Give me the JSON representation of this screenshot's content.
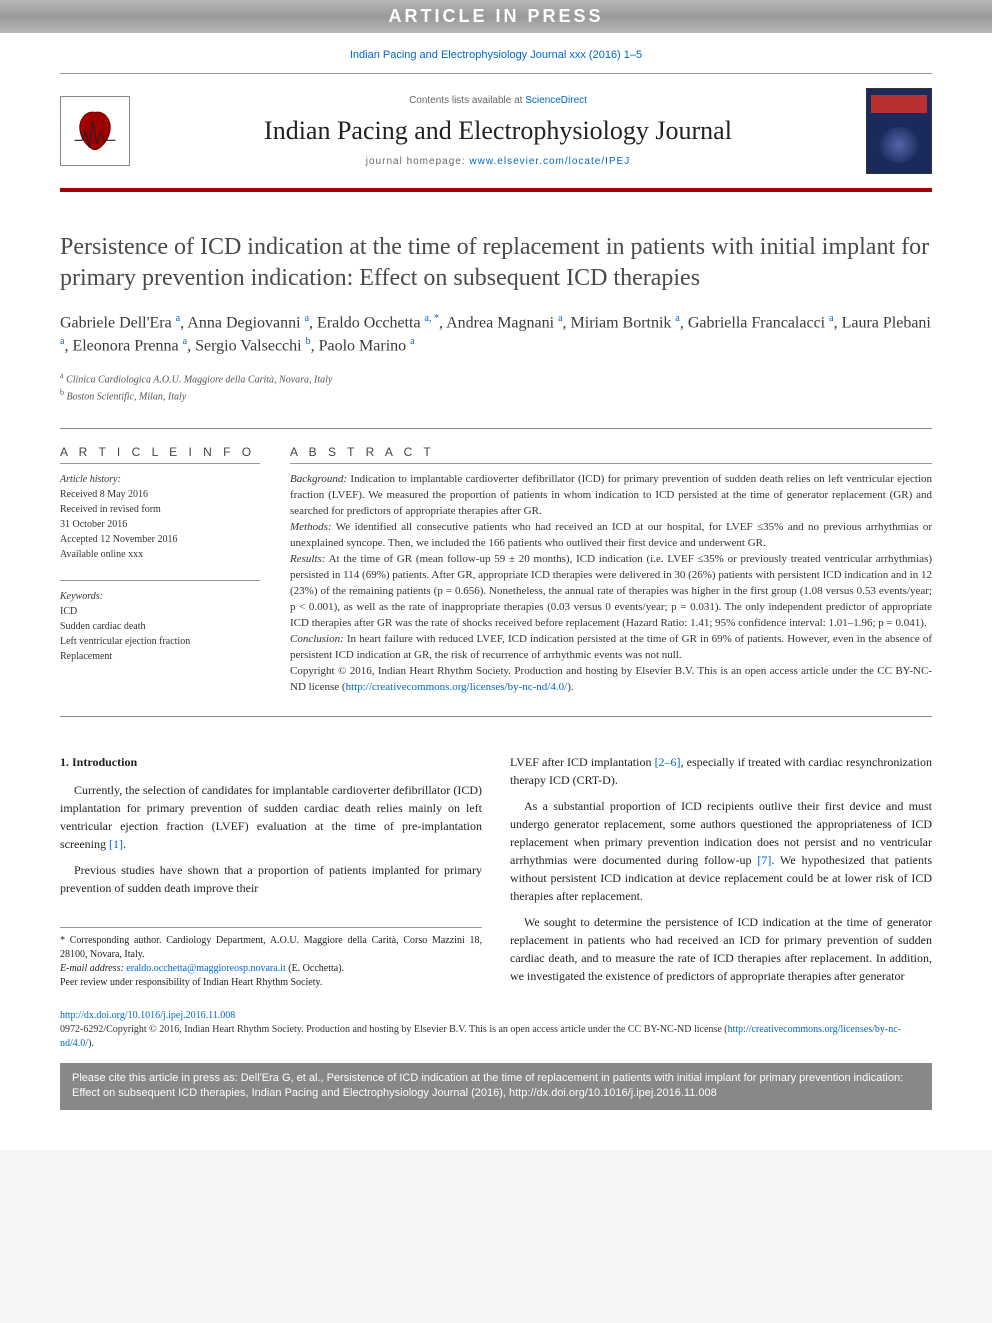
{
  "banner": {
    "text": "ARTICLE IN PRESS"
  },
  "journal_ref": "Indian Pacing and Electrophysiology Journal xxx (2016) 1–5",
  "header": {
    "contents_prefix": "Contents lists available at ",
    "contents_link": "ScienceDirect",
    "journal_title": "Indian Pacing and Electrophysiology Journal",
    "homepage_prefix": "journal homepage: ",
    "homepage_url": "www.elsevier.com/locate/IPEJ"
  },
  "article": {
    "title": "Persistence of ICD indication at the time of replacement in patients with initial implant for primary prevention indication: Effect on subsequent ICD therapies",
    "authors_html": "Gabriele Dell'Era <sup>a</sup>, Anna Degiovanni <sup>a</sup>, Eraldo Occhetta <sup>a, *</sup>, Andrea Magnani <sup>a</sup>, Miriam Bortnik <sup>a</sup>, Gabriella Francalacci <sup>a</sup>, Laura Plebani <sup>a</sup>, Eleonora Prenna <sup>a</sup>, Sergio Valsecchi <sup>b</sup>, Paolo Marino <sup>a</sup>",
    "affiliations": [
      {
        "sup": "a",
        "text": "Clinica Cardiologica A.O.U. Maggiore della Carità, Novara, Italy"
      },
      {
        "sup": "b",
        "text": "Boston Scientific, Milan, Italy"
      }
    ]
  },
  "info": {
    "heading_info": "A R T I C L E   I N F O",
    "history_label": "Article history:",
    "history": [
      "Received 8 May 2016",
      "Received in revised form",
      "31 October 2016",
      "Accepted 12 November 2016",
      "Available online xxx"
    ],
    "keywords_label": "Keywords:",
    "keywords": [
      "ICD",
      "Sudden cardiac death",
      "Left ventricular ejection fraction",
      "Replacement"
    ]
  },
  "abstract": {
    "heading": "A B S T R A C T",
    "background_label": "Background:",
    "background": "Indication to implantable cardioverter defibrillator (ICD) for primary prevention of sudden death relies on left ventricular ejection fraction (LVEF). We measured the proportion of patients in whom indication to ICD persisted at the time of generator replacement (GR) and searched for predictors of appropriate therapies after GR.",
    "methods_label": "Methods:",
    "methods": "We identified all consecutive patients who had received an ICD at our hospital, for LVEF ≤35% and no previous arrhythmias or unexplained syncope. Then, we included the 166 patients who outlived their first device and underwent GR.",
    "results_label": "Results:",
    "results": "At the time of GR (mean follow-up 59 ± 20 months), ICD indication (i.e. LVEF ≤35% or previously treated ventricular arrhythmias) persisted in 114 (69%) patients. After GR, appropriate ICD therapies were delivered in 30 (26%) patients with persistent ICD indication and in 12 (23%) of the remaining patients (p = 0.656). Nonetheless, the annual rate of therapies was higher in the first group (1.08 versus 0.53 events/year; p < 0.001), as well as the rate of inappropriate therapies (0.03 versus 0 events/year; p = 0.031). The only independent predictor of appropriate ICD therapies after GR was the rate of shocks received before replacement (Hazard Ratio: 1.41; 95% confidence interval: 1.01–1.96; p = 0.041).",
    "conclusion_label": "Conclusion:",
    "conclusion": "In heart failure with reduced LVEF, ICD indication persisted at the time of GR in 69% of patients. However, even in the absence of persistent ICD indication at GR, the risk of recurrence of arrhythmic events was not null.",
    "copyright": "Copyright © 2016, Indian Heart Rhythm Society. Production and hosting by Elsevier B.V. This is an open access article under the CC BY-NC-ND license (",
    "license_url": "http://creativecommons.org/licenses/by-nc-nd/4.0/",
    "copyright_suffix": ")."
  },
  "body": {
    "section_heading": "1. Introduction",
    "p1": "Currently, the selection of candidates for implantable cardioverter defibrillator (ICD) implantation for primary prevention of sudden cardiac death relies mainly on left ventricular ejection fraction (LVEF) evaluation at the time of pre-implantation screening ",
    "ref1": "[1]",
    "p1_suffix": ".",
    "p2": "Previous studies have shown that a proportion of patients implanted for primary prevention of sudden death improve their ",
    "p2b": "LVEF after ICD implantation ",
    "ref2": "[2–6]",
    "p2b_suffix": ", especially if treated with cardiac resynchronization therapy ICD (CRT-D).",
    "p3": "As a substantial proportion of ICD recipients outlive their first device and must undergo generator replacement, some authors questioned the appropriateness of ICD replacement when primary prevention indication does not persist and no ventricular arrhythmias were documented during follow-up ",
    "ref3": "[7]",
    "p3_suffix": ". We hypothesized that patients without persistent ICD indication at device replacement could be at lower risk of ICD therapies after replacement.",
    "p4": "We sought to determine the persistence of ICD indication at the time of generator replacement in patients who had received an ICD for primary prevention of sudden cardiac death, and to measure the rate of ICD therapies after replacement. In addition, we investigated the existence of predictors of appropriate therapies after generator"
  },
  "footnotes": {
    "corr_label": "* Corresponding author. ",
    "corr_text": "Cardiology Department, A.O.U. Maggiore della Carità, Corso Mazzini 18, 28100, Novara, Italy.",
    "email_label": "E-mail address: ",
    "email": "eraldo.occhetta@maggioreosp.novara.it",
    "email_suffix": " (E. Occhetta).",
    "peer": "Peer review under responsibility of Indian Heart Rhythm Society."
  },
  "doi": {
    "url": "http://dx.doi.org/10.1016/j.ipej.2016.11.008",
    "issn_line": "0972-6292/Copyright © 2016, Indian Heart Rhythm Society. Production and hosting by Elsevier B.V. This is an open access article under the CC BY-NC-ND license (",
    "license_url": "http://creativecommons.org/licenses/by-nc-nd/4.0/",
    "issn_suffix": ")."
  },
  "cite_box": "Please cite this article in press as: Dell'Era G, et al., Persistence of ICD indication at the time of replacement in patients with initial implant for primary prevention indication: Effect on subsequent ICD therapies, Indian Pacing and Electrophysiology Journal (2016), http://dx.doi.org/10.1016/j.ipej.2016.11.008",
  "colors": {
    "accent_red": "#a00000",
    "link_blue": "#0066cc",
    "banner_gray": "#999999",
    "cite_gray": "#888888",
    "cover_navy": "#1a2a5a"
  }
}
